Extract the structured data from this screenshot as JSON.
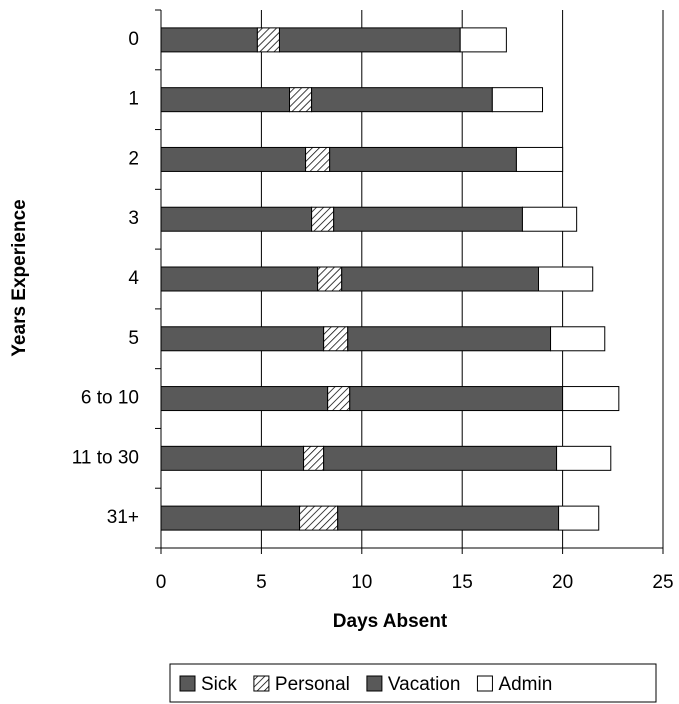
{
  "chart_data": {
    "type": "stacked-bar-horizontal",
    "x_label": "Days Absent",
    "y_label": "Years Experience",
    "categories": [
      "0",
      "1",
      "2",
      "3",
      "4",
      "5",
      "6 to 10",
      "11 to 30",
      "31+"
    ],
    "series": [
      {
        "name": "Sick",
        "color": "#595959",
        "values": [
          4.8,
          6.4,
          7.2,
          7.5,
          7.8,
          8.1,
          8.3,
          7.1,
          6.9
        ]
      },
      {
        "name": "Personal",
        "color": "#d9d9d9",
        "hatch": true,
        "values": [
          1.1,
          1.1,
          1.2,
          1.1,
          1.2,
          1.2,
          1.1,
          1.0,
          1.9
        ]
      },
      {
        "name": "Vacation",
        "color": "#595959",
        "values": [
          9.0,
          9.0,
          9.3,
          9.4,
          9.8,
          10.1,
          10.6,
          11.6,
          11.0
        ]
      },
      {
        "name": "Admin",
        "color": "#ffffff",
        "values": [
          2.3,
          2.5,
          2.3,
          2.7,
          2.7,
          2.7,
          2.8,
          2.7,
          2.0
        ]
      }
    ],
    "xlim": [
      0,
      25
    ],
    "xticks": [
      0,
      5,
      10,
      15,
      20,
      25
    ],
    "grid": true,
    "legend": "bottom"
  }
}
